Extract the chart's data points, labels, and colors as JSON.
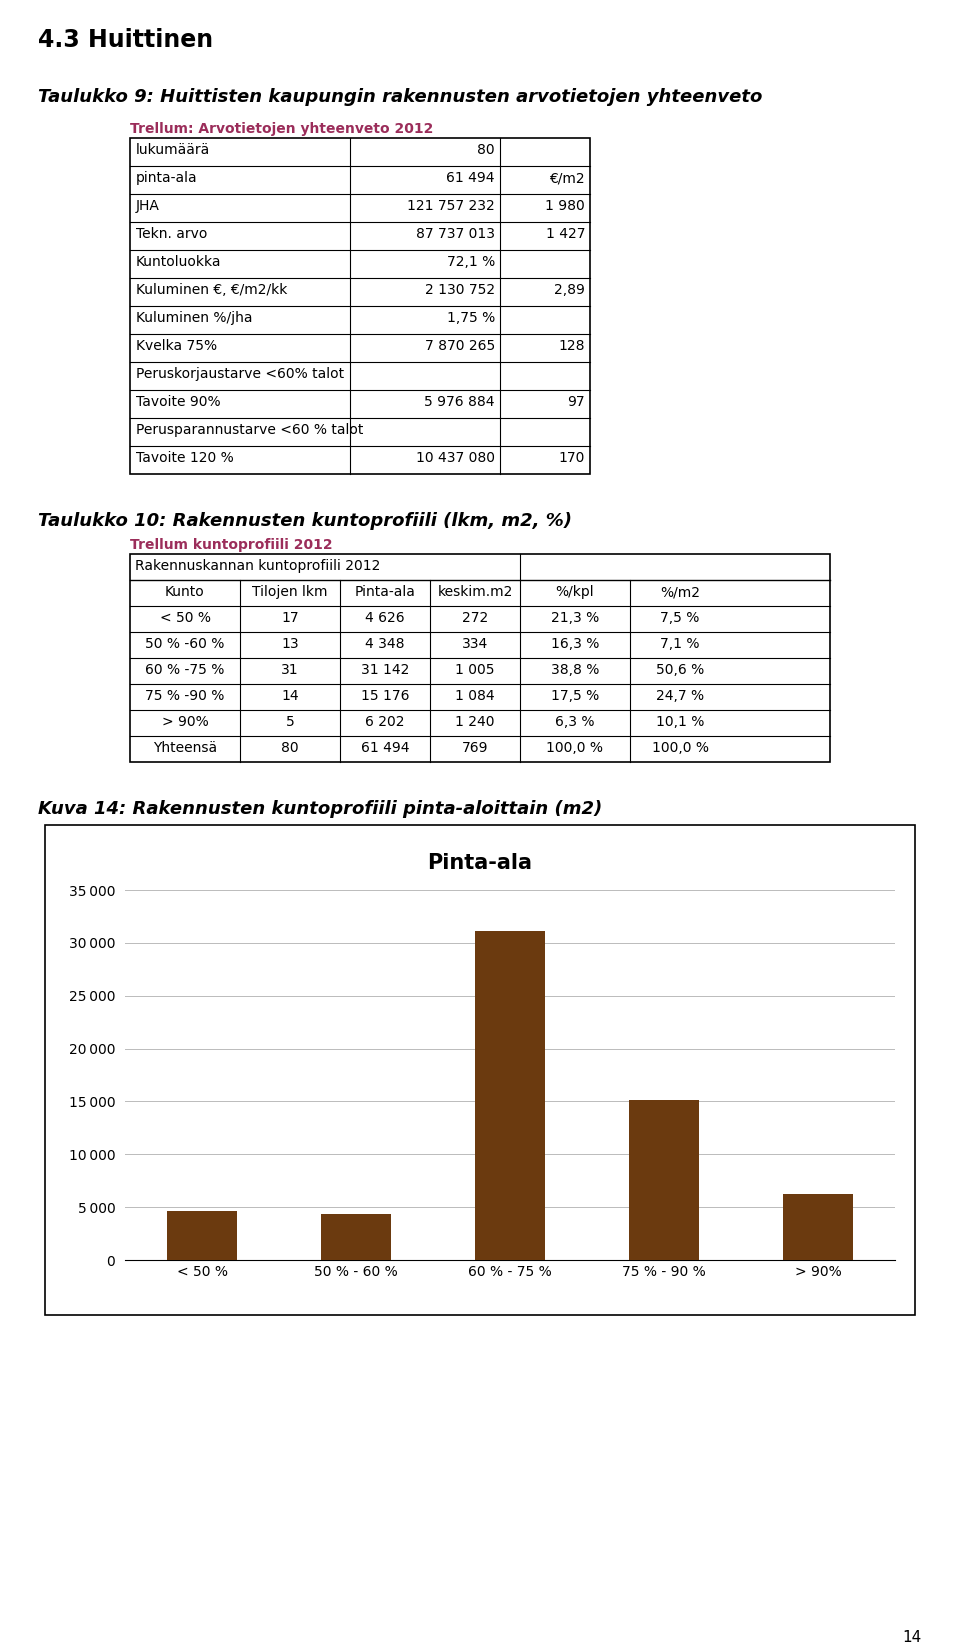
{
  "page_title": "4.3 Huittinen",
  "page_number": "14",
  "section1_title": "Taulukko 9: Huittisten kaupungin rakennusten arvotietojen yhteenveto",
  "table1_header": "Trellum: Arvotietojen yhteenveto 2012",
  "table1_rows": [
    [
      "lukumäärä",
      "80",
      ""
    ],
    [
      "pinta-ala",
      "61 494",
      "€/m2"
    ],
    [
      "JHA",
      "121 757 232",
      "1 980"
    ],
    [
      "Tekn. arvo",
      "87 737 013",
      "1 427"
    ],
    [
      "Kuntoluokka",
      "72,1 %",
      ""
    ],
    [
      "Kuluminen €, €/m2/kk",
      "2 130 752",
      "2,89"
    ],
    [
      "Kuluminen %/jha",
      "1,75 %",
      ""
    ],
    [
      "Kvelka 75%",
      "7 870 265",
      "128"
    ],
    [
      "Peruskorjaustarve <60% talot",
      "",
      ""
    ],
    [
      "Tavoite 90%",
      "5 976 884",
      "97"
    ],
    [
      "Perusparannustarve <60 % talot",
      "",
      ""
    ],
    [
      "Tavoite 120 %",
      "10 437 080",
      "170"
    ]
  ],
  "section2_title": "Taulukko 10: Rakennusten kuntoprofiili (lkm, m2, %)",
  "table2_header1": "Trellum kuntoprofiili 2012",
  "table2_header2": "Rakennuskannan kuntoprofiili 2012",
  "table2_col_headers": [
    "Kunto",
    "Tilojen lkm",
    "Pinta-ala",
    "keskim.m2",
    "%/kpl",
    "%/m2"
  ],
  "table2_rows": [
    [
      "< 50 %",
      "17",
      "4 626",
      "272",
      "21,3 %",
      "7,5 %"
    ],
    [
      "50 % -60 %",
      "13",
      "4 348",
      "334",
      "16,3 %",
      "7,1 %"
    ],
    [
      "60 % -75 %",
      "31",
      "31 142",
      "1 005",
      "38,8 %",
      "50,6 %"
    ],
    [
      "75 % -90 %",
      "14",
      "15 176",
      "1 084",
      "17,5 %",
      "24,7 %"
    ],
    [
      "> 90%",
      "5",
      "6 202",
      "1 240",
      "6,3 %",
      "10,1 %"
    ],
    [
      "Yhteensä",
      "80",
      "61 494",
      "769",
      "100,0 %",
      "100,0 %"
    ]
  ],
  "section3_title": "Kuva 14: Rakennusten kuntoprofiili pinta-aloittain (m2)",
  "chart_title": "Pinta-ala",
  "chart_categories": [
    "< 50 %",
    "50 % - 60 %",
    "60 % - 75 %",
    "75 % - 90 %",
    "> 90%"
  ],
  "chart_values": [
    4626,
    4348,
    31142,
    15176,
    6202
  ],
  "bar_color": "#6B3A0F",
  "chart_ylim": [
    0,
    35000
  ],
  "chart_yticks": [
    0,
    5000,
    10000,
    15000,
    20000,
    25000,
    30000,
    35000
  ],
  "bg_color": "#ffffff",
  "text_color": "#000000",
  "table_header_color": "#9B2D5A"
}
